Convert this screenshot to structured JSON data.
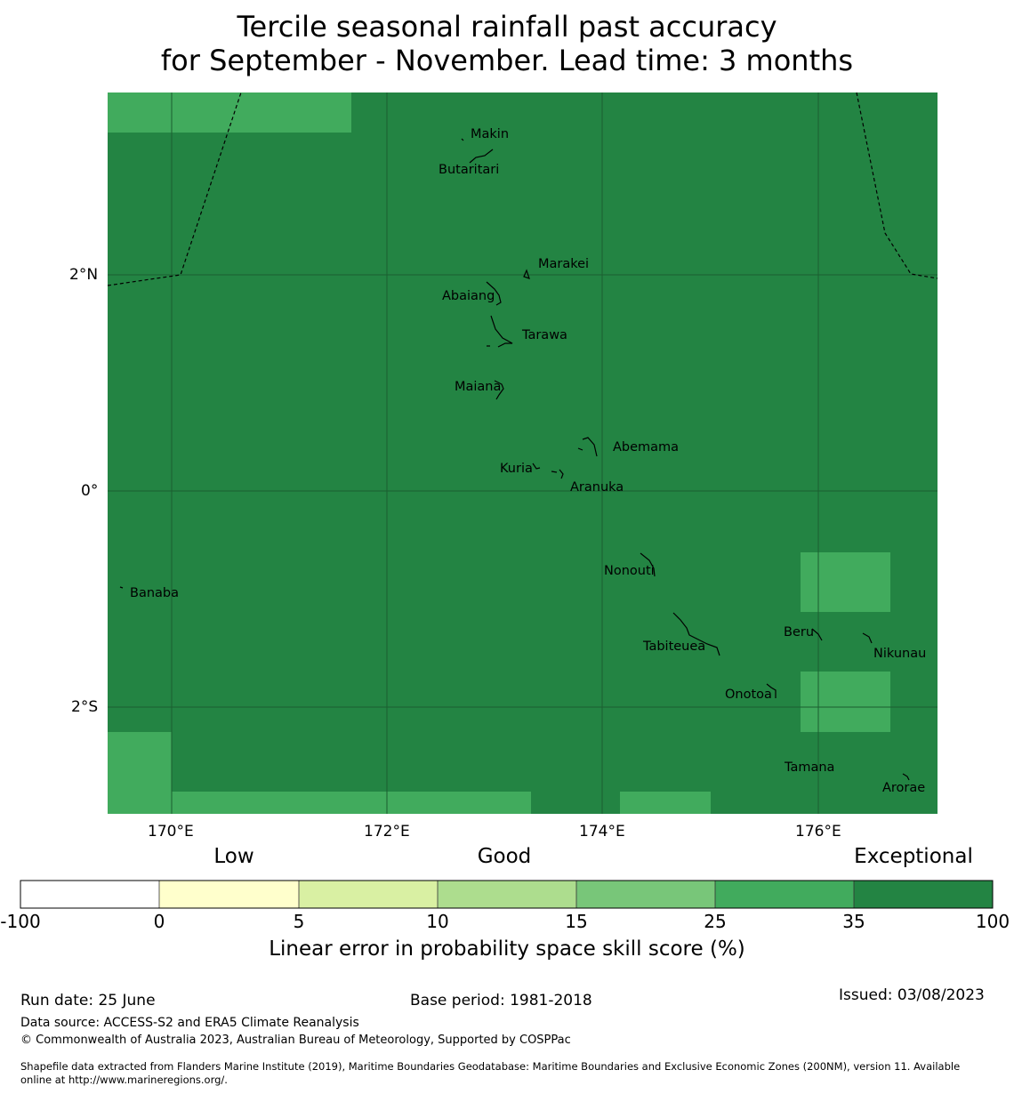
{
  "title": {
    "line1": "Tercile seasonal rainfall past accuracy",
    "line2": "for September - November. Lead time: 3 months"
  },
  "map": {
    "lon_ticks": [
      "170°E",
      "172°E",
      "174°E",
      "176°E"
    ],
    "lat_ticks": [
      "2°N",
      "0°",
      "2°S"
    ],
    "islands": [
      "Makin",
      "Butaritari",
      "Marakei",
      "Abaiang",
      "Tarawa",
      "Maiana",
      "Abemama",
      "Kuria",
      "Aranuka",
      "Banaba",
      "Nonouti",
      "Beru",
      "Tabiteuea",
      "Nikunau",
      "Onotoa",
      "Tamana",
      "Arorae"
    ],
    "colors": {
      "exceptional": "#238443",
      "very_good": "#41ab5d",
      "grid": "#1b5e30",
      "coast": "#000000"
    }
  },
  "colorbar": {
    "categories": [
      "Low",
      "Good",
      "Exceptional"
    ],
    "ticks": [
      "-100",
      "0",
      "5",
      "10",
      "15",
      "25",
      "35",
      "100"
    ],
    "colors": [
      "#ffffff",
      "#ffffcc",
      "#d9f0a3",
      "#addd8e",
      "#78c679",
      "#41ab5d",
      "#238443"
    ],
    "label": "Linear error in probability space skill score (%)"
  },
  "footer": {
    "run_date": "Run date: 25 June",
    "base_period": "Base period: 1981-2018",
    "issued": "Issued: 03/08/2023",
    "data_source": "Data source: ACCESS-S2 and ERA5 Climate Reanalysis",
    "copyright": "© Commonwealth of Australia 2023, Australian Bureau of Meteorology, Supported by COSPPac",
    "shapefile_1": "Shapefile data extracted from Flanders Marine Institute (2019), Maritime Boundaries Geodatabase: Maritime Boundaries and Exclusive Economic Zones (200NM), version 11. Available",
    "shapefile_2": "online at http://www.marineregions.org/."
  }
}
